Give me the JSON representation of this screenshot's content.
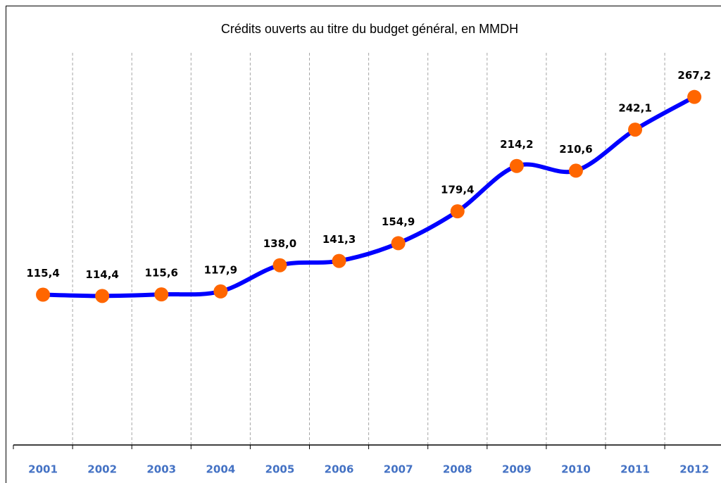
{
  "chart_data": {
    "type": "line",
    "title": "Crédits ouverts au titre du budget général, en MMDH",
    "categories": [
      "2001",
      "2002",
      "2003",
      "2004",
      "2005",
      "2006",
      "2007",
      "2008",
      "2009",
      "2010",
      "2011",
      "2012"
    ],
    "values": [
      115.4,
      114.4,
      115.6,
      117.9,
      138.0,
      141.3,
      154.9,
      179.4,
      214.2,
      210.6,
      242.1,
      267.2
    ],
    "value_labels": [
      "115,4",
      "114,4",
      "115,6",
      "117,9",
      "138,0",
      "141,3",
      "154,9",
      "179,4",
      "214,2",
      "210,6",
      "242,1",
      "267,2"
    ],
    "color": "#0000ff",
    "marker_color": "#ff6600",
    "ylim": [
      0,
      300
    ],
    "grid": true,
    "smooth": true
  }
}
